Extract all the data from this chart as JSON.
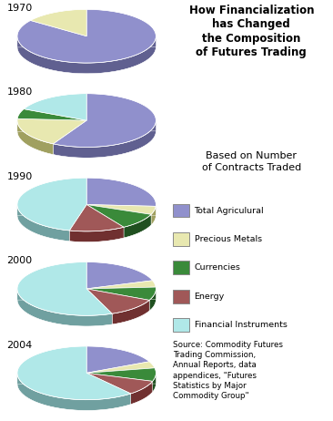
{
  "title": "How Financialization\nhas Changed\nthe Composition\nof Futures Trading",
  "subtitle": "Based on Number\nof Contracts Traded",
  "source": "Source: Commodity Futures\nTrading Commission,\nAnnual Reports, data\nappendices, \"Futures\nStatistics by Major\nCommodity Group\"",
  "years": [
    "1970",
    "1980",
    "1990",
    "2000",
    "2004"
  ],
  "colors": [
    "#9090cc",
    "#e8e8b0",
    "#3a8a3a",
    "#a05858",
    "#b0e8e8"
  ],
  "dark_colors": [
    "#606090",
    "#a0a060",
    "#205020",
    "#703030",
    "#70a0a0"
  ],
  "shadow_color": "#707080",
  "data": {
    "1970": [
      85,
      15,
      0,
      0,
      0
    ],
    "1980": [
      58,
      18,
      6,
      0,
      18
    ],
    "1990": [
      26,
      5,
      10,
      13,
      46
    ],
    "2000": [
      20,
      4,
      8,
      12,
      56
    ],
    "2004": [
      18,
      4,
      8,
      9,
      61
    ]
  },
  "background_color": "#ffffff",
  "text_color": "#000000",
  "legend_labels": [
    "Total Agriculural",
    "Precious Metals",
    "Currencies",
    "Energy",
    "Financial Instruments"
  ]
}
